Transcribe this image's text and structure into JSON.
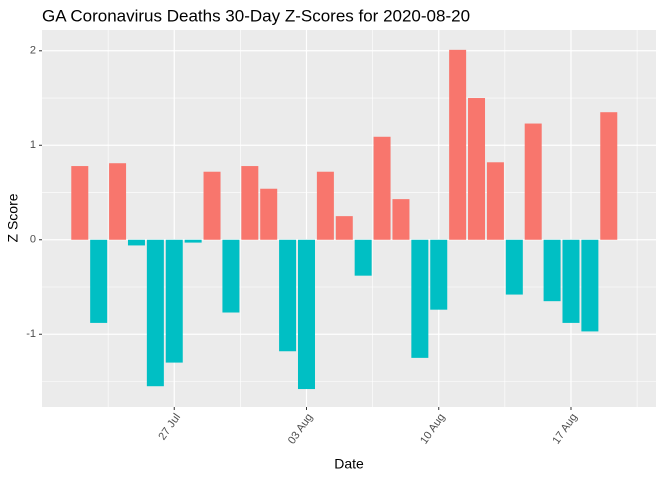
{
  "chart_data": {
    "type": "bar",
    "title": "GA Coronavirus Deaths 30-Day Z-Scores for 2020-08-20",
    "x_label": "Date",
    "y_label": "Z Score",
    "x": [
      "2020-07-22",
      "2020-07-23",
      "2020-07-24",
      "2020-07-25",
      "2020-07-26",
      "2020-07-27",
      "2020-07-28",
      "2020-07-29",
      "2020-07-30",
      "2020-07-31",
      "2020-08-01",
      "2020-08-02",
      "2020-08-03",
      "2020-08-04",
      "2020-08-05",
      "2020-08-06",
      "2020-08-07",
      "2020-08-08",
      "2020-08-09",
      "2020-08-10",
      "2020-08-11",
      "2020-08-12",
      "2020-08-13",
      "2020-08-14",
      "2020-08-15",
      "2020-08-16",
      "2020-08-17",
      "2020-08-18",
      "2020-08-19"
    ],
    "values": [
      0.78,
      -0.88,
      0.81,
      -0.06,
      -1.55,
      -1.3,
      -0.03,
      0.72,
      -0.77,
      0.78,
      0.54,
      -1.18,
      -1.58,
      0.72,
      0.25,
      -0.38,
      1.09,
      0.43,
      -1.25,
      -0.74,
      2.01,
      1.5,
      0.82,
      -0.58,
      1.23,
      -0.65,
      -0.88,
      -0.97,
      1.35
    ],
    "positive_color": "#F8766D",
    "negative_color": "#00BFC4",
    "xlim": [
      "2020-07-20",
      "2020-08-21T12:00"
    ],
    "xticks": [
      {
        "value": "2020-07-27",
        "label": "27 Jul"
      },
      {
        "value": "2020-08-03",
        "label": "03 Aug"
      },
      {
        "value": "2020-08-10",
        "label": "10 Aug"
      },
      {
        "value": "2020-08-17",
        "label": "17 Aug"
      }
    ],
    "xminor": [
      "2020-07-23T12:00",
      "2020-07-30T12:00",
      "2020-08-06T12:00",
      "2020-08-13T12:00",
      "2020-08-20T12:00"
    ],
    "ylim": [
      -1.77,
      2.22
    ],
    "yticks": [
      -1,
      0,
      1,
      2
    ],
    "yminor": [
      -1.5,
      -0.5,
      0.5,
      1.5
    ],
    "grid": true
  }
}
